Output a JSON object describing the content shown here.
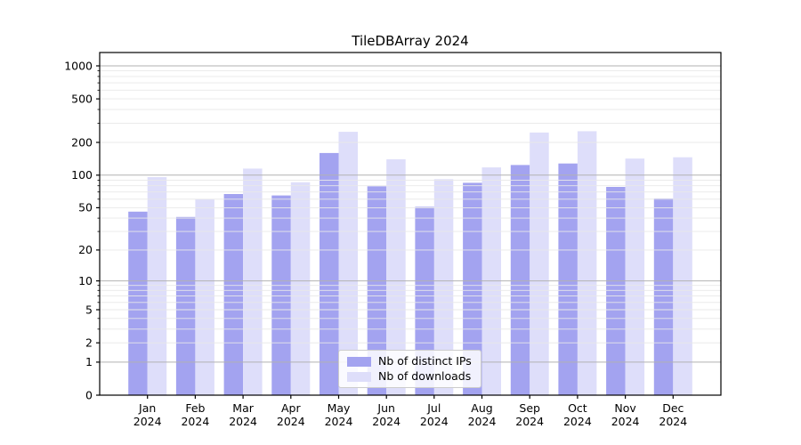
{
  "title": "TileDBArray 2024",
  "chart_data": {
    "type": "bar",
    "title": "TileDBArray 2024",
    "categories": [
      "Jan",
      "Feb",
      "Mar",
      "Apr",
      "May",
      "Jun",
      "Jul",
      "Aug",
      "Sep",
      "Oct",
      "Nov",
      "Dec"
    ],
    "year": "2024",
    "series": [
      {
        "name": "Nb of distinct IPs",
        "color": "#a3a3f0",
        "values": [
          46,
          41,
          67,
          65,
          160,
          79,
          51,
          85,
          124,
          128,
          78,
          61
        ]
      },
      {
        "name": "Nb of downloads",
        "color": "#dedefa",
        "values": [
          96,
          60,
          115,
          86,
          250,
          140,
          92,
          118,
          246,
          253,
          142,
          146
        ]
      }
    ],
    "yscale": "log1p",
    "ylim": [
      0,
      1320
    ],
    "yticks": [
      0,
      1,
      2,
      5,
      10,
      20,
      50,
      100,
      200,
      500,
      1000
    ],
    "major_gridlines": [
      1,
      10,
      100,
      1000
    ],
    "minor_gridlines": [
      2,
      3,
      4,
      5,
      6,
      7,
      8,
      9,
      20,
      30,
      40,
      50,
      60,
      70,
      80,
      90,
      200,
      300,
      400,
      500,
      600,
      700,
      800,
      900
    ],
    "grid": true,
    "legend_position": "lower center",
    "bar_group_offsets": [
      -0.4,
      0.0
    ],
    "bar_width_fraction": 0.4
  },
  "colors": {
    "background": "#ffffff",
    "axis": "#000000",
    "text": "#000000",
    "major_grid": "#b2b2b2",
    "minor_grid": "#e8e8e8",
    "legend_border": "#cccccc"
  }
}
